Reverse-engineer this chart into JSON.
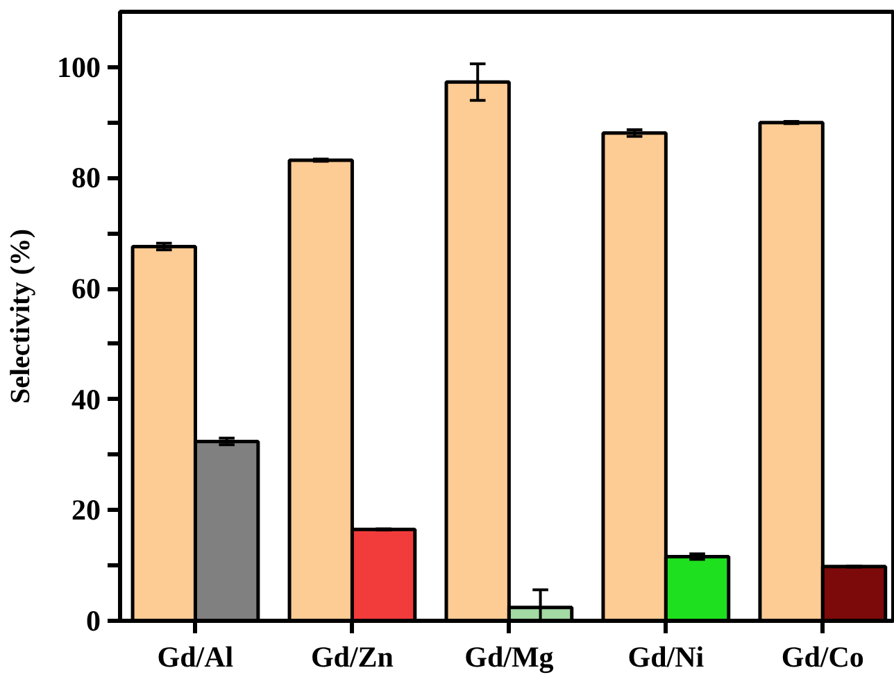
{
  "chart_data": {
    "type": "bar",
    "ylabel": "Selectivity (%)",
    "categories": [
      "Gd/Al",
      "Gd/Zn",
      "Gd/Mg",
      "Gd/Ni",
      "Gd/Co"
    ],
    "series": [
      {
        "color": "#fdcb94",
        "values": [
          67.6,
          83.2,
          97.3,
          88.1,
          90.0
        ],
        "errors": [
          0.6,
          0.2,
          3.3,
          0.6,
          0.2
        ]
      },
      {
        "colors": [
          "#808080",
          "#f23b3b",
          "#a3d9a3",
          "#1ee01e",
          "#7d0a0a"
        ],
        "values": [
          32.4,
          16.5,
          2.4,
          11.6,
          9.8
        ],
        "errors": [
          0.6,
          0.1,
          3.2,
          0.5,
          0.1
        ]
      }
    ],
    "ylim": [
      0,
      110
    ],
    "yticks": [
      0,
      {
        "value": 10,
        "label": null
      },
      20,
      {
        "value": 30,
        "label": null
      },
      40,
      {
        "value": 50,
        "label": null
      },
      60,
      {
        "value": 70,
        "label": null
      },
      80,
      {
        "value": 90,
        "label": null
      },
      100
    ],
    "grid": false
  }
}
